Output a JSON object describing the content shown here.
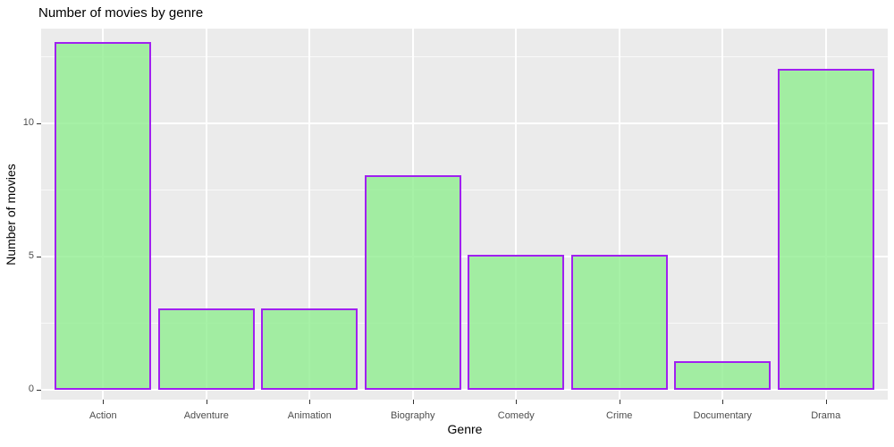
{
  "chart_data": {
    "type": "bar",
    "title": "Number of movies by genre",
    "xlabel": "Genre",
    "ylabel": "Number of movies",
    "categories": [
      "Action",
      "Adventure",
      "Animation",
      "Biography",
      "Comedy",
      "Crime",
      "Documentary",
      "Drama"
    ],
    "values": [
      13,
      3,
      3,
      8,
      5,
      5,
      1,
      12
    ],
    "yticks": [
      0,
      5,
      10
    ],
    "y_minor_ticks": [
      2.5,
      7.5,
      12.5
    ],
    "ylim": [
      0,
      13.65
    ],
    "grid": true,
    "legend_position": "none",
    "colors": {
      "bar_fill": "#90ee90",
      "bar_fill_opacity": 0.8,
      "bar_border": "#a020f0",
      "panel_background": "#ebebeb",
      "gridline": "#ffffff",
      "tick_label": "#4d4d4d",
      "tick_mark": "#333333",
      "axis_title": "#000000",
      "title": "#000000",
      "page_background": "#ffffff"
    }
  }
}
